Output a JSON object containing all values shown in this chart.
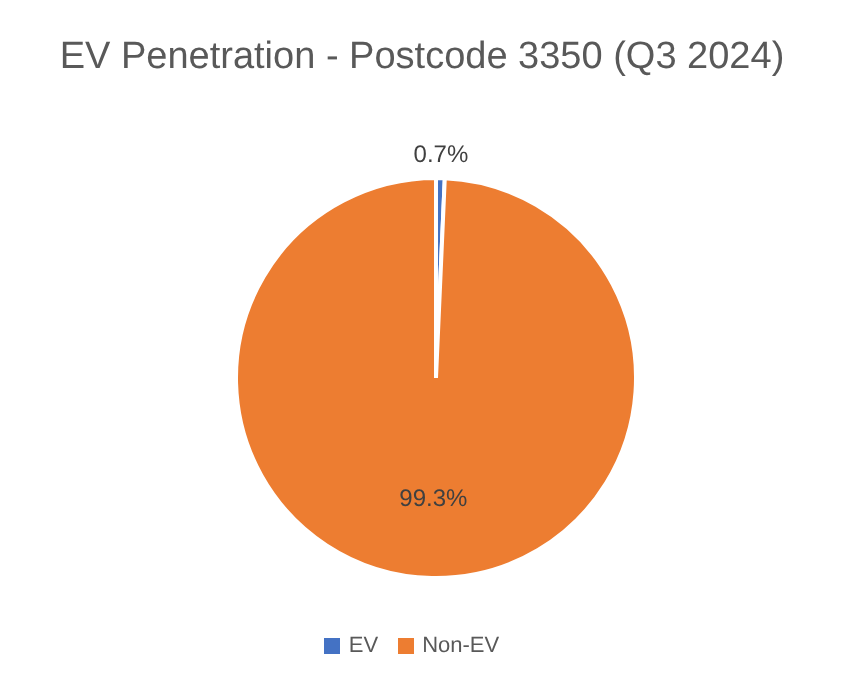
{
  "chart_data": {
    "type": "pie",
    "title": "EV Penetration - Postcode 3350 (Q3 2024)",
    "categories": [
      "EV",
      "Non-EV"
    ],
    "values": [
      0.7,
      99.3
    ],
    "colors": [
      "#4472c4",
      "#ed7d31"
    ],
    "value_labels": [
      "0.7%",
      "99.3%"
    ],
    "legend": "bottom"
  }
}
